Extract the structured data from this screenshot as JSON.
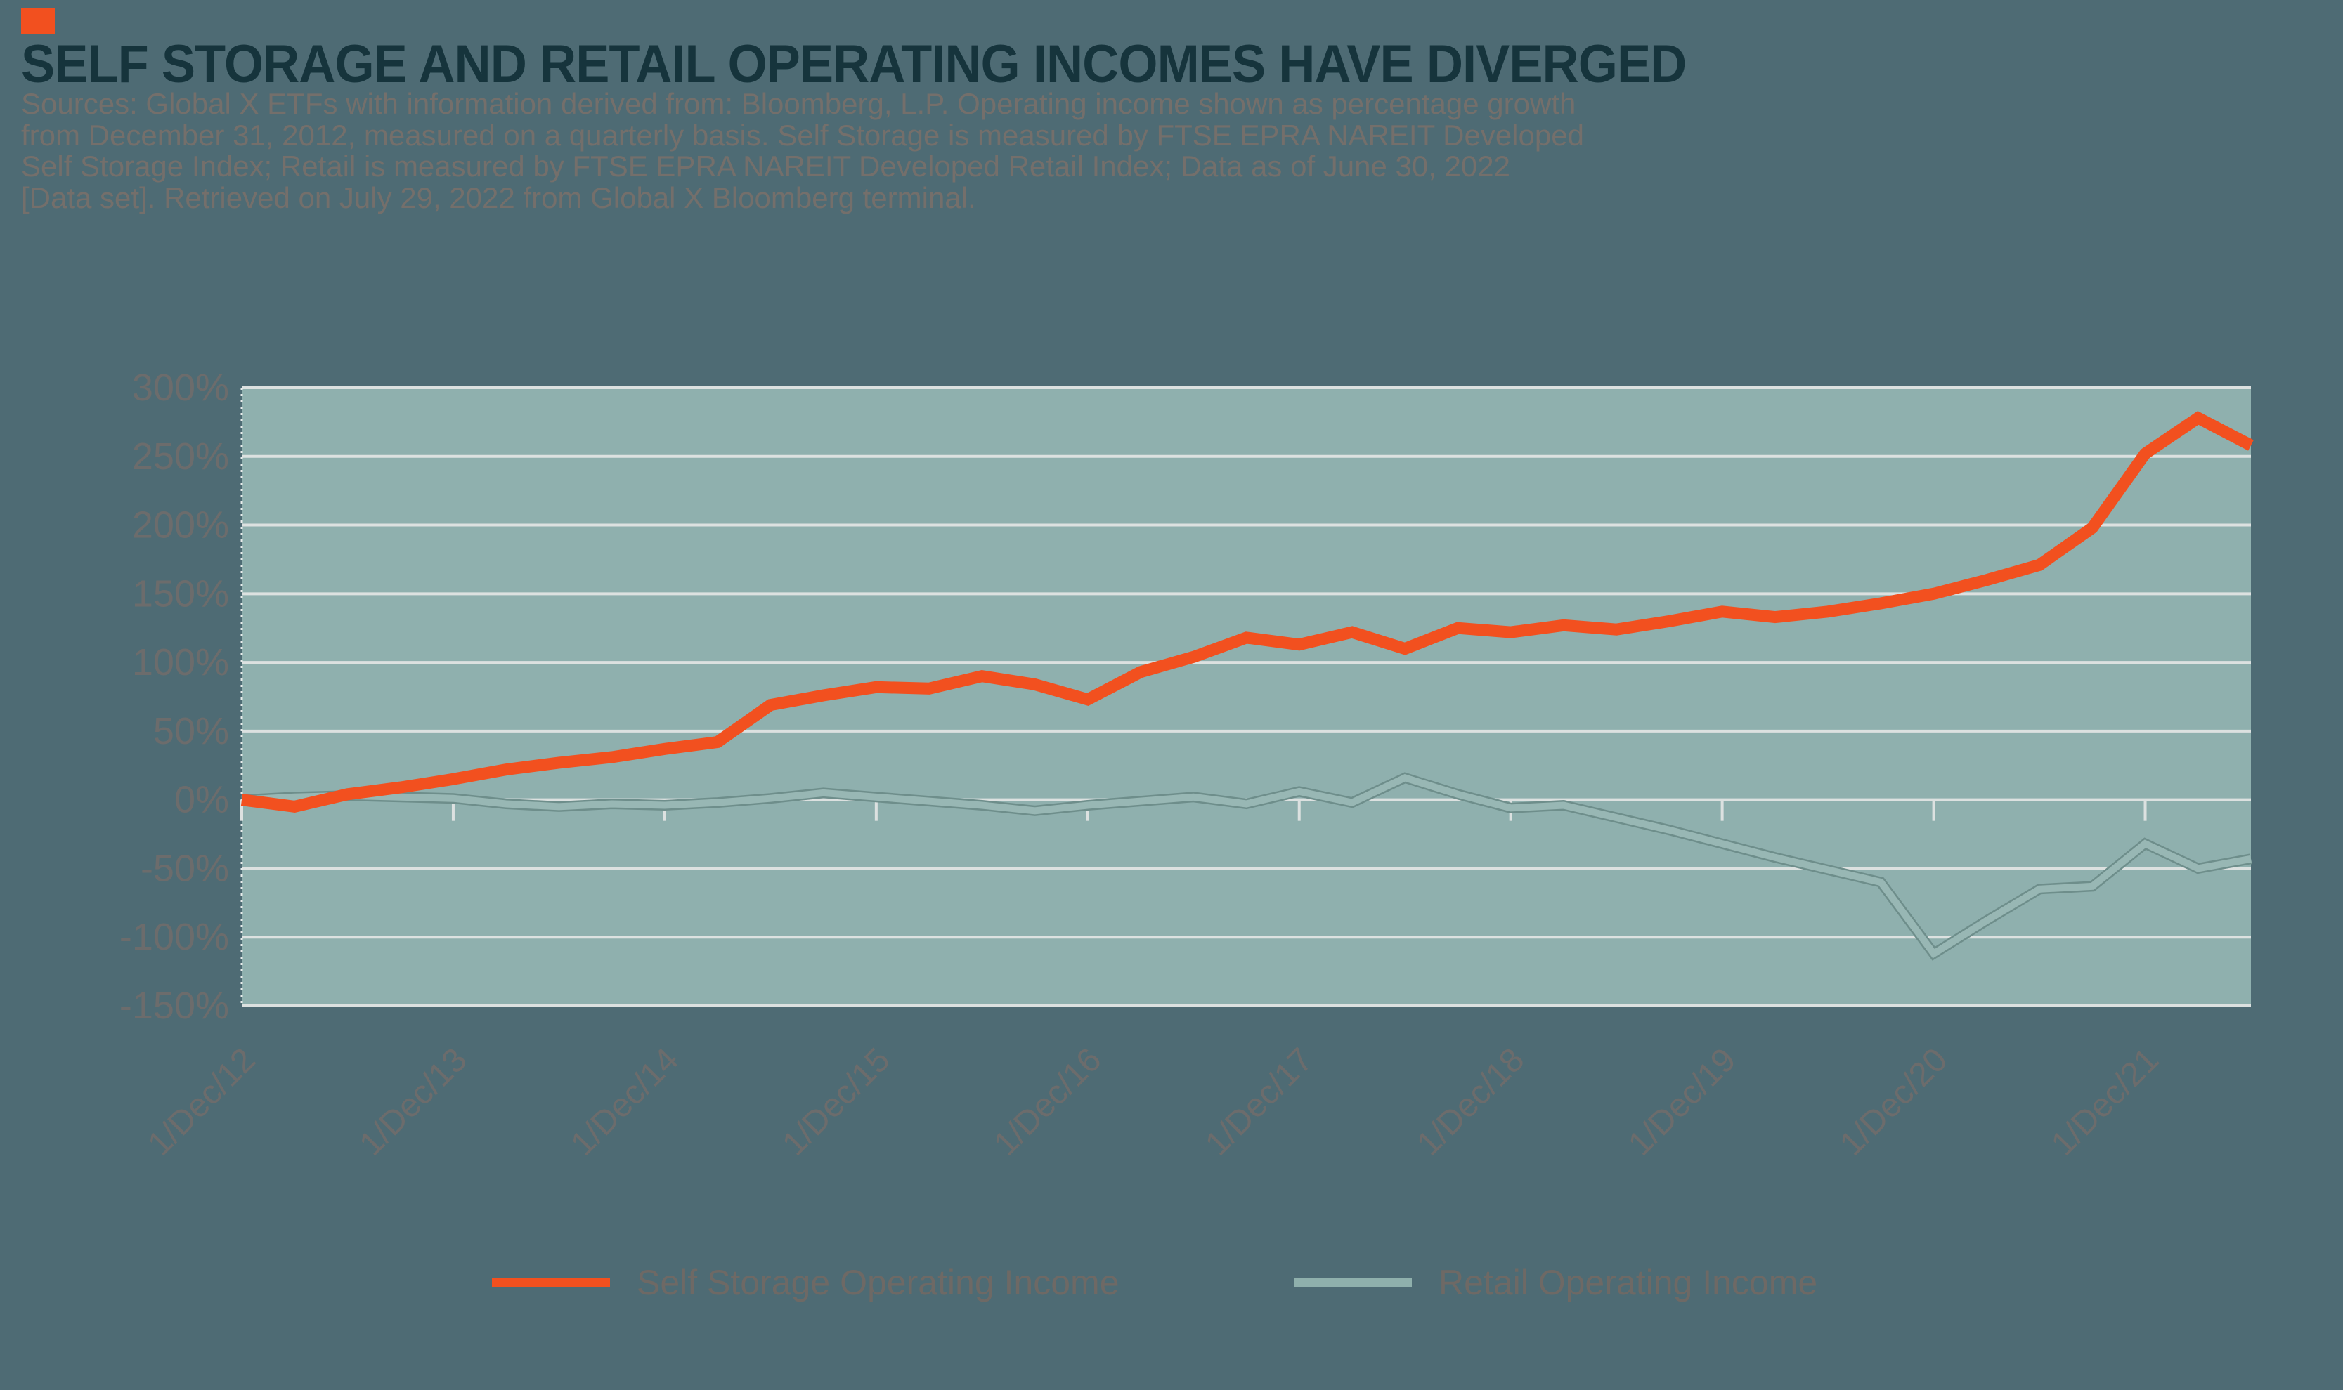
{
  "logo_color": "#F2501F",
  "header": {
    "title": "SELF STORAGE AND RETAIL OPERATING INCOMES HAVE DIVERGED",
    "source_lines": [
      "Sources: Global X ETFs with information derived from: Bloomberg, L.P. Operating income shown as percentage growth",
      "from December 31, 2012, measured on a quarterly basis. Self Storage is measured by FTSE EPRA NAREIT Developed",
      "Self Storage Index; Retail is measured by FTSE EPRA NAREIT Developed Retail Index; Data as of June 30, 2022",
      "[Data set]. Retrieved on July 29, 2022 from Global X Bloomberg terminal."
    ]
  },
  "chart_data": {
    "type": "line",
    "title": "Self storage and retail operating income, % growth from December 31, 2012, quarterly",
    "xlabel": "",
    "ylabel": "",
    "ylim": [
      -150,
      300
    ],
    "ytick_step": 50,
    "y_tick_labels": [
      "300%",
      "250%",
      "200%",
      "150%",
      "100%",
      "50%",
      "0%",
      "-50%",
      "-100%",
      "-150%"
    ],
    "grid": true,
    "legend_position": "bottom",
    "plot_bg": "#8FB0AE",
    "gridline_color": "#DCE1E0",
    "axis_label_color": "#6C6C6C",
    "x_axis_tick_labels": [
      "1/Dec/12",
      "1/Dec/13",
      "1/Dec/14",
      "1/Dec/15",
      "1/Dec/16",
      "1/Dec/17",
      "1/Dec/18",
      "1/Dec/19",
      "1/Dec/20",
      "1/Dec/21"
    ],
    "categories": [
      "Dec-12",
      "Mar-13",
      "Jun-13",
      "Sep-13",
      "Dec-13",
      "Mar-14",
      "Jun-14",
      "Sep-14",
      "Dec-14",
      "Mar-15",
      "Jun-15",
      "Sep-15",
      "Dec-15",
      "Mar-16",
      "Jun-16",
      "Sep-16",
      "Dec-16",
      "Mar-17",
      "Jun-17",
      "Sep-17",
      "Dec-17",
      "Mar-18",
      "Jun-18",
      "Sep-18",
      "Dec-18",
      "Mar-19",
      "Jun-19",
      "Sep-19",
      "Dec-19",
      "Mar-20",
      "Jun-20",
      "Sep-20",
      "Dec-20",
      "Mar-21",
      "Jun-21",
      "Sep-21",
      "Dec-21",
      "Mar-22",
      "Jun-22"
    ],
    "series": [
      {
        "name": "Self Storage Operating Income",
        "color": "#F2501F",
        "values": [
          0,
          -5,
          4,
          9,
          15,
          22,
          27,
          31,
          37,
          42,
          69,
          76,
          82,
          81,
          90,
          84,
          73,
          93,
          104,
          118,
          113,
          122,
          110,
          125,
          122,
          127,
          124,
          130,
          137,
          133,
          137,
          143,
          150,
          160,
          171,
          198,
          252,
          278,
          258
        ]
      },
      {
        "name": "Retail Operating Income",
        "color": "#8FB0AC",
        "values": [
          0,
          2,
          3,
          2,
          1,
          -3,
          -5,
          -3,
          -4,
          -2,
          1,
          5,
          2,
          -1,
          -4,
          -8,
          -4,
          -1,
          2,
          -3,
          6,
          -2,
          16,
          4,
          -6,
          -4,
          -13,
          -22,
          -32,
          -42,
          -51,
          -60,
          -112,
          -88,
          -65,
          -63,
          -32,
          -50,
          -43
        ]
      }
    ]
  }
}
